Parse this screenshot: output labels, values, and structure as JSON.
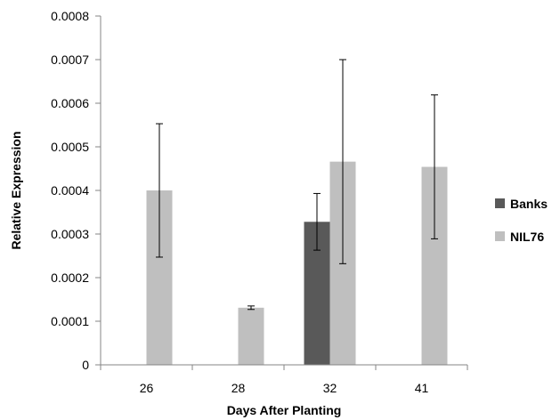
{
  "chart_data": {
    "type": "bar",
    "xlabel": "Days After Planting",
    "ylabel": "Relative Expression",
    "categories": [
      "26",
      "28",
      "32",
      "41"
    ],
    "ylim": [
      0,
      0.0008
    ],
    "yticks": [
      "0",
      "0.0001",
      "0.0002",
      "0.0003",
      "0.0004",
      "0.0005",
      "0.0006",
      "0.0007",
      "0.0008"
    ],
    "grid": false,
    "legend_position": "right",
    "series": [
      {
        "name": "Banks",
        "color": "#595959",
        "values": [
          null,
          null,
          0.000328,
          null
        ],
        "error": [
          null,
          null,
          6.5e-05,
          null
        ]
      },
      {
        "name": "NIL76",
        "color": "#bfbfbf",
        "values": [
          0.0004,
          0.000131,
          0.000466,
          0.000454
        ],
        "error": [
          0.000153,
          4e-06,
          0.000234,
          0.000165
        ]
      }
    ]
  }
}
